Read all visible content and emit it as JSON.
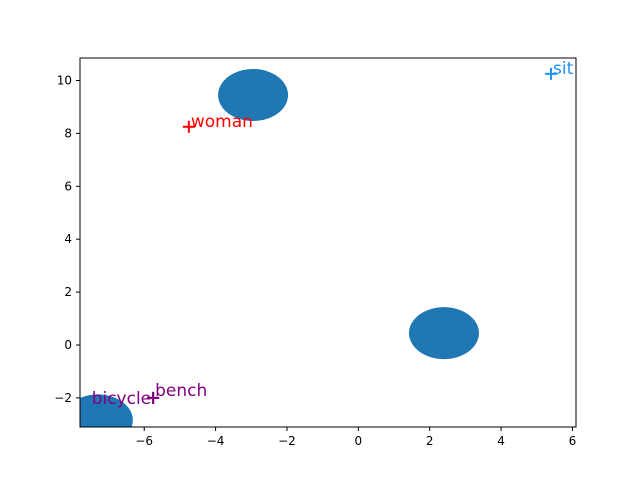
{
  "chart_data": {
    "type": "scatter",
    "title": "",
    "xlabel": "",
    "ylabel": "",
    "xlim": [
      -7.8,
      6.1
    ],
    "ylim": [
      -3.1,
      10.85
    ],
    "x_ticks": [
      -6,
      -4,
      -2,
      0,
      2,
      4,
      6
    ],
    "y_ticks": [
      -2,
      0,
      2,
      4,
      6,
      8,
      10
    ],
    "x_tick_labels": [
      "−6",
      "−4",
      "−2",
      "0",
      "2",
      "4",
      "6"
    ],
    "y_tick_labels": [
      "−2",
      "0",
      "2",
      "4",
      "6",
      "8",
      "10"
    ],
    "grid": false,
    "blobs": {
      "color": "#1f77b4",
      "points": [
        {
          "x": -2.95,
          "y": 9.45
        },
        {
          "x": 2.4,
          "y": 0.45
        },
        {
          "x": -7.3,
          "y": -2.85
        }
      ]
    },
    "markers": [
      {
        "label": "woman",
        "x": -4.75,
        "y": 8.25,
        "color": "#ff0000"
      },
      {
        "label": "sit",
        "x": 5.4,
        "y": 10.25,
        "color": "#1e90ff"
      },
      {
        "label": "bench",
        "x": -5.75,
        "y": -2.0,
        "color": "#800080"
      },
      {
        "label": "bicycle",
        "x": -5.75,
        "y": -2.0,
        "color": "#800080"
      }
    ]
  }
}
